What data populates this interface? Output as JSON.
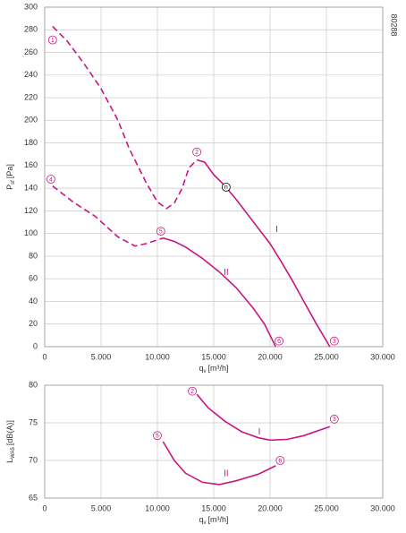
{
  "chart_data": [
    {
      "type": "line",
      "code": "80288",
      "ylabel": {
        "main": "P",
        "sub": "sf",
        "unit": "[Pa]"
      },
      "xlabel": {
        "main": "q",
        "sub": "v",
        "unit": "[m³/h]"
      },
      "xlim": [
        0,
        30000
      ],
      "ylim": [
        0,
        300
      ],
      "grid": true,
      "xticks": [
        0,
        {
          "value": 5000,
          "label": "5.000"
        },
        {
          "value": 10000,
          "label": "10.000"
        },
        {
          "value": 15000,
          "label": "15.000"
        },
        {
          "value": 20000,
          "label": "20.000"
        },
        {
          "value": 25000,
          "label": "25.000"
        },
        {
          "value": 30000,
          "label": "30.000"
        }
      ],
      "yticks": [
        0,
        20,
        40,
        60,
        80,
        100,
        120,
        140,
        160,
        180,
        200,
        220,
        240,
        260,
        280,
        300
      ],
      "series": [
        {
          "color": "#c8167f",
          "line_style": "dashed",
          "x": [
            700,
            2000,
            3500,
            5000,
            6500,
            7500,
            9000,
            10000,
            10800,
            11500,
            12200,
            12800,
            13500
          ],
          "values": [
            283,
            270,
            250,
            228,
            200,
            175,
            145,
            128,
            122,
            127,
            140,
            158,
            165
          ]
        },
        {
          "color": "#c8167f",
          "line_style": "solid",
          "x": [
            13500,
            14200,
            15000,
            16000,
            17000,
            18000,
            19000,
            20000,
            21000,
            22000,
            23000,
            24000,
            25300
          ],
          "values": [
            165,
            163,
            152,
            142,
            130,
            117,
            104,
            91,
            75,
            58,
            40,
            22,
            0
          ]
        },
        {
          "color": "#c8167f",
          "line_style": "dashed",
          "x": [
            700,
            2500,
            4500,
            6500,
            8000,
            9000,
            10500
          ],
          "values": [
            142,
            128,
            115,
            97,
            89,
            91,
            96
          ]
        },
        {
          "color": "#c8167f",
          "line_style": "solid",
          "x": [
            10500,
            11500,
            12500,
            14000,
            15500,
            17000,
            18500,
            19500,
            20500
          ],
          "values": [
            96,
            93,
            88,
            78,
            66,
            52,
            34,
            20,
            0
          ]
        }
      ],
      "annotations": [
        {
          "text": "1",
          "x": 700,
          "y": 271,
          "circled": true
        },
        {
          "text": "2",
          "x": 13500,
          "y": 172,
          "circled": true
        },
        {
          "text": "n",
          "x": 16100,
          "y": 141,
          "circled": true,
          "color": "#000000"
        },
        {
          "text": "I",
          "x": 20600,
          "y": 104,
          "circled": false
        },
        {
          "text": "3",
          "x": 25700,
          "y": 5,
          "circled": true
        },
        {
          "text": "4",
          "x": 550,
          "y": 148,
          "circled": true
        },
        {
          "text": "5",
          "x": 10300,
          "y": 102,
          "circled": true
        },
        {
          "text": "II",
          "x": 16100,
          "y": 66,
          "circled": false
        },
        {
          "text": "6",
          "x": 20800,
          "y": 5,
          "circled": true
        }
      ]
    },
    {
      "type": "line",
      "ylabel": {
        "main": "L",
        "sub": "WA5",
        "unit": "[dB(A)]"
      },
      "xlabel": {
        "main": "q",
        "sub": "v",
        "unit": "[m³/h]"
      },
      "xlim": [
        0,
        30000
      ],
      "ylim": [
        65,
        80
      ],
      "grid": true,
      "xticks": [
        0,
        {
          "value": 5000,
          "label": "5.000"
        },
        {
          "value": 10000,
          "label": "10.000"
        },
        {
          "value": 15000,
          "label": "15.000"
        },
        {
          "value": 20000,
          "label": "20.000"
        },
        {
          "value": 25000,
          "label": "25.000"
        },
        {
          "value": 30000,
          "label": "30.000"
        }
      ],
      "yticks": [
        65,
        70,
        75,
        80
      ],
      "series": [
        {
          "color": "#c8167f",
          "line_style": "solid",
          "x": [
            13500,
            14500,
            16000,
            17500,
            19000,
            20000,
            21500,
            23000,
            25300
          ],
          "values": [
            78.8,
            77,
            75.2,
            73.8,
            73,
            72.7,
            72.8,
            73.3,
            74.5
          ]
        },
        {
          "color": "#c8167f",
          "line_style": "solid",
          "x": [
            10500,
            11500,
            12500,
            14000,
            15500,
            17000,
            19000,
            20500
          ],
          "values": [
            72.5,
            70,
            68.3,
            67.1,
            66.8,
            67.3,
            68.2,
            69.3
          ]
        }
      ],
      "annotations": [
        {
          "text": "2",
          "x": 13100,
          "y": 79.2,
          "circled": true
        },
        {
          "text": "I",
          "x": 19050,
          "y": 73.8,
          "circled": false
        },
        {
          "text": "3",
          "x": 25700,
          "y": 75.5,
          "circled": true
        },
        {
          "text": "5",
          "x": 10000,
          "y": 73.3,
          "circled": true
        },
        {
          "text": "II",
          "x": 16100,
          "y": 68.3,
          "circled": false
        },
        {
          "text": "6",
          "x": 20900,
          "y": 70,
          "circled": true
        }
      ]
    }
  ]
}
